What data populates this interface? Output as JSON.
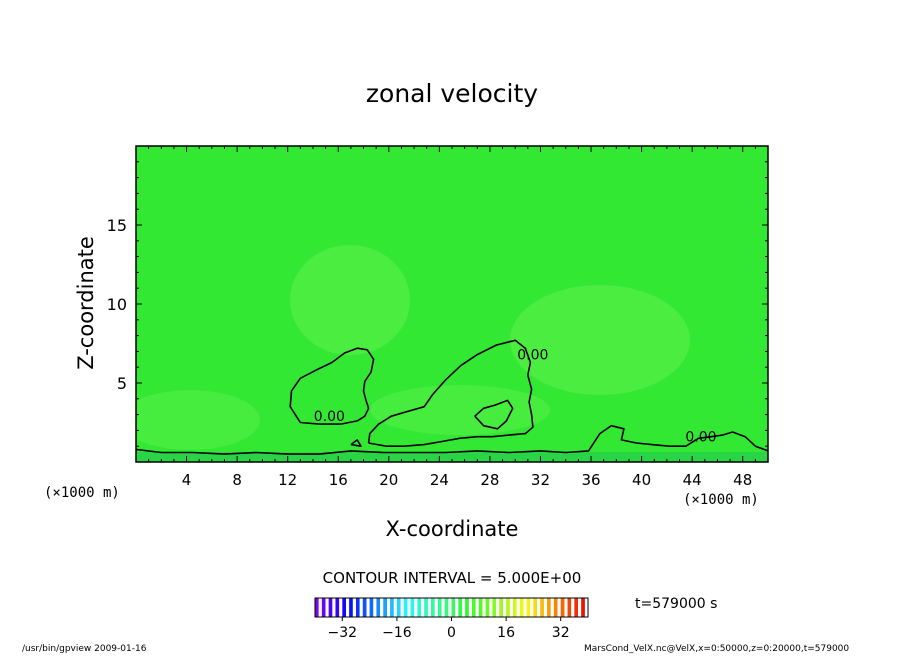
{
  "chart_data": {
    "type": "heatmap",
    "title": "zonal velocity",
    "xlabel": "X-coordinate",
    "ylabel": "Z-coordinate",
    "x_unit_label": "(×1000 m)",
    "y_unit_label": "(×1000 m)",
    "xlim": [
      0,
      50
    ],
    "ylim": [
      0,
      20
    ],
    "x_ticks": [
      4,
      8,
      12,
      16,
      20,
      24,
      28,
      32,
      36,
      40,
      44,
      48
    ],
    "y_ticks": [
      5,
      10,
      15
    ],
    "contour_interval_text": "CONTOUR INTERVAL = 5.000E+00",
    "contour_labels": [
      {
        "text": "0.00",
        "x": 15.3,
        "z": 2.6
      },
      {
        "text": "0.00",
        "x": 31.4,
        "z": 6.5
      },
      {
        "text": "0.00",
        "x": 44.7,
        "z": 1.3
      }
    ],
    "zero_contours": [
      [
        [
          13.0,
          2.5
        ],
        [
          12.2,
          3.5
        ],
        [
          12.3,
          4.5
        ],
        [
          13.0,
          5.3
        ],
        [
          14.2,
          5.8
        ],
        [
          15.5,
          6.3
        ],
        [
          16.5,
          6.9
        ],
        [
          17.5,
          7.2
        ],
        [
          18.3,
          7.1
        ],
        [
          18.8,
          6.5
        ],
        [
          18.6,
          5.7
        ],
        [
          18.1,
          5.1
        ],
        [
          18.0,
          4.5
        ],
        [
          18.2,
          3.9
        ],
        [
          18.4,
          3.4
        ],
        [
          18.1,
          2.9
        ],
        [
          17.5,
          2.6
        ],
        [
          16.2,
          2.4
        ],
        [
          14.5,
          2.4
        ],
        [
          13.0,
          2.5
        ]
      ],
      [
        [
          18.4,
          1.2
        ],
        [
          18.5,
          1.8
        ],
        [
          19.2,
          2.4
        ],
        [
          20.2,
          2.9
        ],
        [
          21.5,
          3.2
        ],
        [
          22.8,
          3.5
        ],
        [
          23.5,
          4.3
        ],
        [
          24.5,
          5.2
        ],
        [
          25.7,
          6.1
        ],
        [
          27.0,
          6.8
        ],
        [
          28.5,
          7.4
        ],
        [
          30.0,
          7.7
        ],
        [
          30.8,
          7.2
        ],
        [
          31.2,
          6.3
        ],
        [
          31.0,
          5.5
        ],
        [
          31.3,
          4.6
        ],
        [
          31.1,
          3.8
        ],
        [
          31.3,
          3.0
        ],
        [
          31.4,
          2.2
        ],
        [
          30.8,
          1.8
        ],
        [
          29.5,
          1.7
        ],
        [
          28.2,
          1.6
        ],
        [
          27.0,
          1.6
        ],
        [
          25.6,
          1.5
        ],
        [
          24.2,
          1.3
        ],
        [
          22.8,
          1.1
        ],
        [
          21.2,
          1.0
        ],
        [
          19.8,
          1.0
        ],
        [
          18.4,
          1.2
        ]
      ],
      [
        [
          26.8,
          2.9
        ],
        [
          27.5,
          2.3
        ],
        [
          28.6,
          2.1
        ],
        [
          29.3,
          2.6
        ],
        [
          29.8,
          3.4
        ],
        [
          29.4,
          3.9
        ],
        [
          28.4,
          3.6
        ],
        [
          27.5,
          3.4
        ],
        [
          26.8,
          2.9
        ]
      ],
      [
        [
          0.0,
          0.8
        ],
        [
          2.0,
          0.6
        ],
        [
          4.5,
          0.6
        ],
        [
          7.0,
          0.5
        ],
        [
          9.5,
          0.6
        ],
        [
          12.0,
          0.5
        ],
        [
          14.5,
          0.5
        ],
        [
          17.0,
          0.7
        ],
        [
          19.5,
          0.6
        ],
        [
          22.0,
          0.6
        ],
        [
          24.5,
          0.6
        ],
        [
          27.0,
          0.7
        ],
        [
          29.5,
          0.6
        ],
        [
          32.0,
          0.7
        ],
        [
          34.0,
          0.6
        ],
        [
          35.8,
          0.7
        ],
        [
          36.7,
          1.8
        ],
        [
          37.6,
          2.3
        ],
        [
          38.6,
          2.1
        ],
        [
          38.4,
          1.4
        ],
        [
          39.6,
          1.2
        ],
        [
          40.8,
          1.1
        ],
        [
          42.2,
          1.0
        ],
        [
          43.5,
          1.0
        ],
        [
          44.5,
          1.5
        ],
        [
          45.5,
          1.6
        ],
        [
          46.4,
          1.7
        ],
        [
          47.2,
          1.9
        ],
        [
          48.2,
          1.6
        ],
        [
          49.0,
          1.0
        ],
        [
          50.0,
          0.7
        ]
      ],
      [
        [
          17.0,
          1.1
        ],
        [
          17.5,
          1.4
        ],
        [
          17.8,
          1.0
        ],
        [
          17.0,
          1.1
        ]
      ]
    ],
    "colorbar": {
      "min": -40,
      "max": 40,
      "tick_values": [
        -32,
        -16,
        0,
        16,
        32
      ],
      "tick_labels": [
        "−32",
        "−16",
        "0",
        "16",
        "32"
      ]
    },
    "colors": {
      "field_background": "#33e833",
      "field_light": "#5af04a",
      "near_surface": "#28d248"
    }
  },
  "time_text": "t=579000 s",
  "footer_left": "/usr/bin/gpview   2009-01-16",
  "footer_right": "MarsCond_VelX.nc@VelX,x=0:50000,z=0:20000,t=579000"
}
